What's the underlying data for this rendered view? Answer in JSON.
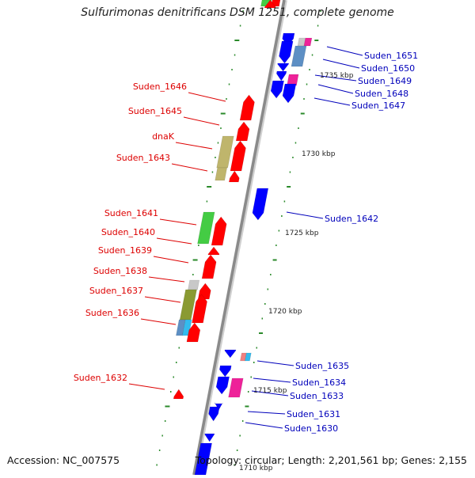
{
  "title": "Sulfurimonas denitrificans DSM 1251, complete genome",
  "accession": "Accession: NC_007575",
  "summary": "Topology: circular; Length: 2,201,561 bp; Genes: 2,155",
  "colors": {
    "forward": "#ff0000",
    "reverse": "#0000ff",
    "olive": "#8a9a32",
    "khaki": "#bfb56c",
    "green": "#44cc44",
    "steel": "#5d8fc4",
    "magenta": "#ee2299",
    "cyan": "#33bbee",
    "grey": "#c8c8c8",
    "salmon": "#f08080",
    "tick": "#2a8a2a",
    "axis": "#8a8a8a",
    "label_forward": "#dd0000",
    "label_reverse": "#0000bb"
  },
  "position_labels": [
    "1735 kbp",
    "1730 kbp",
    "1725 kbp",
    "1720 kbp",
    "1715 kbp",
    "1710 kbp"
  ],
  "forward_labels": [
    "Suden_1646",
    "Suden_1645",
    "dnaK",
    "Suden_1643",
    "Suden_1641",
    "Suden_1640",
    "Suden_1639",
    "Suden_1638",
    "Suden_1637",
    "Suden_1636",
    "Suden_1632"
  ],
  "reverse_labels": [
    "Suden_1651",
    "Suden_1650",
    "Suden_1649",
    "Suden_1648",
    "Suden_1647",
    "Suden_1642",
    "Suden_1635",
    "Suden_1634",
    "Suden_1633",
    "Suden_1631",
    "Suden_1630"
  ]
}
